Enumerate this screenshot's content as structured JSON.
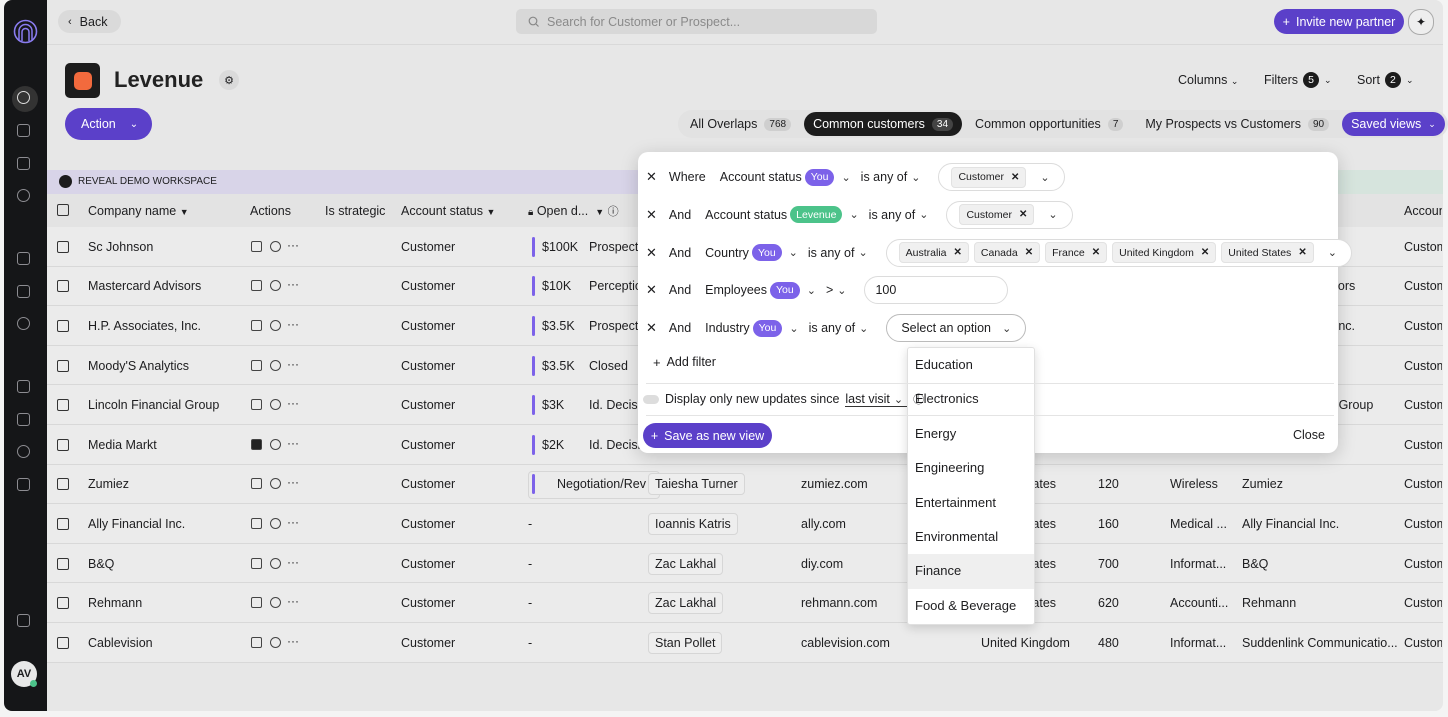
{
  "top_bar": {
    "back": "Back",
    "search_placeholder": "Search for Customer or Prospect...",
    "invite_button": "Invite new partner"
  },
  "sidebar": {
    "avatar": "AV"
  },
  "header": {
    "title": "Levenue",
    "columns": "Columns",
    "filters": "Filters",
    "filters_count": 5,
    "sort": "Sort",
    "sort_count": 2,
    "action": "Action"
  },
  "tabs": [
    {
      "label": "All Overlaps",
      "count": 768
    },
    {
      "label": "Common customers",
      "count": 34,
      "active": true
    },
    {
      "label": "Common opportunities",
      "count": 7
    },
    {
      "label": "My Prospects vs Customers",
      "count": 90
    },
    {
      "label": "Saved views"
    }
  ],
  "workspace": "REVEAL DEMO WORKSPACE",
  "table": {
    "columns": {
      "company": "Company name",
      "actions": "Actions",
      "strategic": "Is strategic",
      "status": "Account status",
      "open": "Open d...",
      "account": "Accoun"
    },
    "rows": [
      {
        "company": "Sc Johnson",
        "status": "Customer",
        "open_amount": "$100K",
        "open_stage": "Prospecti",
        "account": "Custom"
      },
      {
        "company": "Mastercard Advisors",
        "status": "Customer",
        "open_amount": "$10K",
        "open_stage": "Perception",
        "company2": "Mastercard Advisors",
        "account": "Custom"
      },
      {
        "company": "H.P. Associates, Inc.",
        "status": "Customer",
        "open_amount": "$3.5K",
        "open_stage": "Prospecti",
        "company2": "H.P. Associates, Inc.",
        "account": "Custom"
      },
      {
        "company": "Moody'S Analytics",
        "status": "Customer",
        "open_amount": "$3.5K",
        "open_stage": "Closed",
        "account": "Custom"
      },
      {
        "company": "Lincoln Financial Group",
        "status": "Customer",
        "open_amount": "$3K",
        "open_stage": "Id. Decision",
        "company2": "Lincoln Financial Group",
        "account": "Custom"
      },
      {
        "company": "Media Markt",
        "status": "Customer",
        "open_amount": "$2K",
        "open_stage": "Id. Decision",
        "comment_active": true,
        "account": "Custom"
      },
      {
        "company": "Zumiez",
        "status": "Customer",
        "open_stage": "Negotiation/Rev",
        "owner": "Taiesha Turner",
        "domain": "zumiez.com",
        "country": "United States",
        "employees": 120,
        "industry": "Wireless",
        "company2": "Zumiez",
        "account": "Custom"
      },
      {
        "company": "Ally Financial Inc.",
        "status": "Customer",
        "open_stage": "-",
        "owner": "Ioannis Katris",
        "domain": "ally.com",
        "country": "United States",
        "employees": 160,
        "industry": "Medical ...",
        "company2": "Ally Financial Inc.",
        "account": "Custom"
      },
      {
        "company": "B&Q",
        "status": "Customer",
        "open_stage": "-",
        "owner": "Zac Lakhal",
        "domain": "diy.com",
        "country": "United States",
        "employees": 700,
        "industry": "Informat...",
        "company2": "B&Q",
        "account": "Custom"
      },
      {
        "company": "Rehmann",
        "status": "Customer",
        "open_stage": "-",
        "owner": "Zac Lakhal",
        "domain": "rehmann.com",
        "country": "United States",
        "employees": 620,
        "industry": "Accounti...",
        "company2": "Rehmann",
        "account": "Custom"
      },
      {
        "company": "Cablevision",
        "status": "Customer",
        "open_stage": "-",
        "owner": "Stan Pollet",
        "domain": "cablevision.com",
        "country": "United Kingdom",
        "employees": 480,
        "industry": "Informat...",
        "company2": "Suddenlink Communicatio...",
        "account": "Custom"
      }
    ]
  },
  "filter_panel": {
    "filters": [
      {
        "connector": "Where",
        "field": "Account status",
        "source": "You",
        "source_color": "#7c62e9",
        "operator": "is any of",
        "values": [
          "Customer"
        ]
      },
      {
        "connector": "And",
        "field": "Account status",
        "source": "Levenue",
        "source_color": "#4cc38a",
        "operator": "is any of",
        "values": [
          "Customer"
        ]
      },
      {
        "connector": "And",
        "field": "Country",
        "source": "You",
        "source_color": "#7c62e9",
        "operator": "is any of",
        "values": [
          "Australia",
          "Canada",
          "France",
          "United Kingdom",
          "United States"
        ]
      },
      {
        "connector": "And",
        "field": "Employees",
        "source": "You",
        "source_color": "#7c62e9",
        "operator": ">",
        "input": 100
      },
      {
        "connector": "And",
        "field": "Industry",
        "source": "You",
        "source_color": "#7c62e9",
        "operator": "is any of",
        "placeholder": "Select an option"
      }
    ],
    "add_filter": "Add filter",
    "toggle_label": "Display only new updates since",
    "since": "last visit",
    "save_button": "Save as new view",
    "close": "Close"
  },
  "dropdown": {
    "options": [
      "Education",
      "Electronics",
      "Energy",
      "Engineering",
      "Entertainment",
      "Environmental",
      "Finance",
      "Food & Beverage"
    ],
    "highlighted": 6
  }
}
